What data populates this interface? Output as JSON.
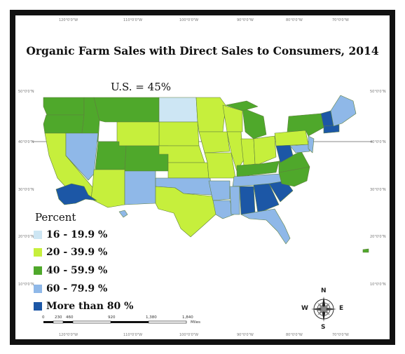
{
  "map": {
    "title": "Organic Farm Sales with Direct Sales to Consumers, 2014",
    "national_value": "U.S. = 45%",
    "legend": {
      "title": "Percent",
      "classes": [
        {
          "label": "16 - 19.9 %",
          "color": "#cde6f4"
        },
        {
          "label": "20 - 39.9 %",
          "color": "#c6ef3c"
        },
        {
          "label": "40 - 59.9 %",
          "color": "#4fa82b"
        },
        {
          "label": "60 - 79.9 %",
          "color": "#8fb8e8"
        },
        {
          "label": "More than 80 %",
          "color": "#1c57a6"
        }
      ]
    },
    "scale_bar": {
      "ticks": [
        "0",
        "230",
        "460",
        "920",
        "1,380",
        "1,840"
      ],
      "unit": "Miles"
    },
    "compass": {
      "north": "N",
      "south": "S",
      "east": "E",
      "west": "W"
    },
    "graticule_labels": {
      "top": [
        "120°0'0\"W",
        "110°0'0\"W",
        "100°0'0\"W",
        "90°0'0\"W",
        "80°0'0\"W",
        "70°0'0\"W"
      ],
      "left": [
        "50°0'0\"N",
        "40°0'0\"N",
        "30°0'0\"N",
        "20°0'0\"N",
        "10°0'0\"N"
      ]
    }
  }
}
